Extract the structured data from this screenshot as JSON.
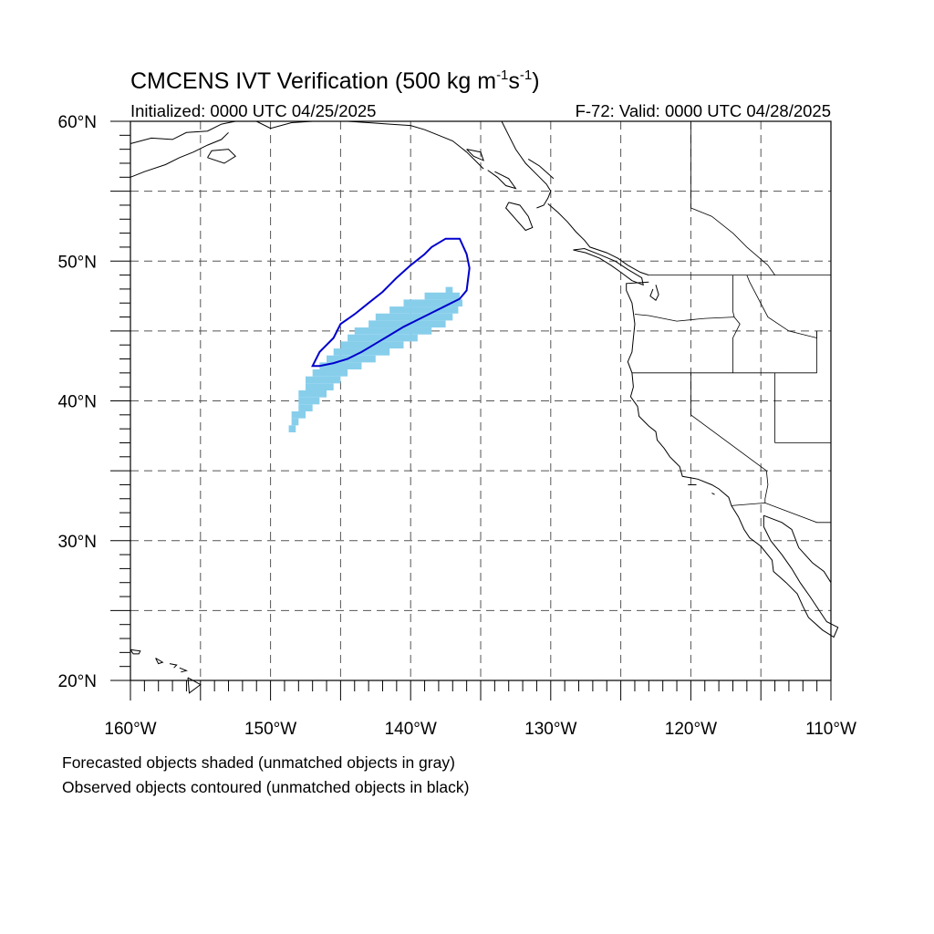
{
  "figure": {
    "title": "CMCENS IVT Verification (500 kg m",
    "title_exp1": "-1",
    "title_mid": "s",
    "title_exp2": "-1",
    "title_end": ")",
    "initialized": "Initialized: 0000 UTC 04/25/2025",
    "valid": "F-72: Valid: 0000 UTC 04/28/2025"
  },
  "axes": {
    "lat_labels": [
      {
        "lat": 60,
        "label": "60°N"
      },
      {
        "lat": 50,
        "label": "50°N"
      },
      {
        "lat": 40,
        "label": "40°N"
      },
      {
        "lat": 30,
        "label": "30°N"
      },
      {
        "lat": 20,
        "label": "20°N"
      }
    ],
    "lon_labels": [
      {
        "lon": -160,
        "label": "160°W"
      },
      {
        "lon": -150,
        "label": "150°W"
      },
      {
        "lon": -140,
        "label": "140°W"
      },
      {
        "lon": -130,
        "label": "130°W"
      },
      {
        "lon": -120,
        "label": "120°W"
      },
      {
        "lon": -110,
        "label": "110°W"
      }
    ],
    "lon_range": [
      -160,
      -110
    ],
    "lat_range": [
      20,
      60
    ],
    "grid_spacing_deg": 5,
    "grid_style": "dashed"
  },
  "colors": {
    "forecast_fill": "#87ceeb",
    "observed_contour": "#0000cd",
    "coast": "#000000",
    "grid": "#555555"
  },
  "objects": {
    "forecast_shaded": {
      "rows": [
        {
          "lat": 47.9,
          "lon_start": -137.5,
          "lon_end": -137.0
        },
        {
          "lat": 47.5,
          "lon_start": -139.0,
          "lon_end": -136.5
        },
        {
          "lat": 47.0,
          "lon_start": -140.5,
          "lon_end": -136.3
        },
        {
          "lat": 46.5,
          "lon_start": -141.5,
          "lon_end": -136.6
        },
        {
          "lat": 46.0,
          "lon_start": -142.5,
          "lon_end": -137.0
        },
        {
          "lat": 45.5,
          "lon_start": -143.0,
          "lon_end": -137.5
        },
        {
          "lat": 45.0,
          "lon_start": -144.0,
          "lon_end": -138.5
        },
        {
          "lat": 44.5,
          "lon_start": -144.5,
          "lon_end": -139.5
        },
        {
          "lat": 44.0,
          "lon_start": -145.0,
          "lon_end": -140.5
        },
        {
          "lat": 43.5,
          "lon_start": -145.5,
          "lon_end": -141.5
        },
        {
          "lat": 43.0,
          "lon_start": -146.0,
          "lon_end": -142.5
        },
        {
          "lat": 42.5,
          "lon_start": -146.5,
          "lon_end": -143.5
        },
        {
          "lat": 42.0,
          "lon_start": -147.0,
          "lon_end": -144.5
        },
        {
          "lat": 41.5,
          "lon_start": -147.5,
          "lon_end": -145.0
        },
        {
          "lat": 41.0,
          "lon_start": -147.5,
          "lon_end": -145.5
        },
        {
          "lat": 40.5,
          "lon_start": -148.0,
          "lon_end": -146.0
        },
        {
          "lat": 40.0,
          "lon_start": -148.0,
          "lon_end": -146.5
        },
        {
          "lat": 39.5,
          "lon_start": -148.0,
          "lon_end": -147.0
        },
        {
          "lat": 39.0,
          "lon_start": -148.5,
          "lon_end": -147.5
        },
        {
          "lat": 38.5,
          "lon_start": -148.5,
          "lon_end": -148.0
        },
        {
          "lat": 38.0,
          "lon_start": -148.7,
          "lon_end": -148.2
        }
      ]
    },
    "observed_contour": {
      "path": [
        [
          -147.0,
          42.5
        ],
        [
          -146.5,
          43.5
        ],
        [
          -145.5,
          44.5
        ],
        [
          -145.0,
          45.5
        ],
        [
          -144.0,
          46.2
        ],
        [
          -143.0,
          47.0
        ],
        [
          -142.0,
          47.8
        ],
        [
          -141.0,
          48.8
        ],
        [
          -140.0,
          49.7
        ],
        [
          -139.0,
          50.5
        ],
        [
          -138.5,
          51.0
        ],
        [
          -137.5,
          51.6
        ],
        [
          -136.5,
          51.6
        ],
        [
          -136.0,
          50.5
        ],
        [
          -135.8,
          49.5
        ],
        [
          -136.0,
          47.9
        ],
        [
          -136.5,
          47.3
        ],
        [
          -137.5,
          46.8
        ],
        [
          -138.5,
          46.3
        ],
        [
          -139.5,
          45.8
        ],
        [
          -140.5,
          45.3
        ],
        [
          -141.5,
          44.7
        ],
        [
          -142.5,
          44.1
        ],
        [
          -143.5,
          43.5
        ],
        [
          -144.5,
          43.0
        ],
        [
          -145.5,
          42.7
        ],
        [
          -146.5,
          42.5
        ],
        [
          -147.0,
          42.5
        ]
      ]
    }
  },
  "footer": {
    "line1": "Forecasted objects shaded (unmatched objects in gray)",
    "line2": "Observed objects contoured (unmatched objects in black)"
  }
}
